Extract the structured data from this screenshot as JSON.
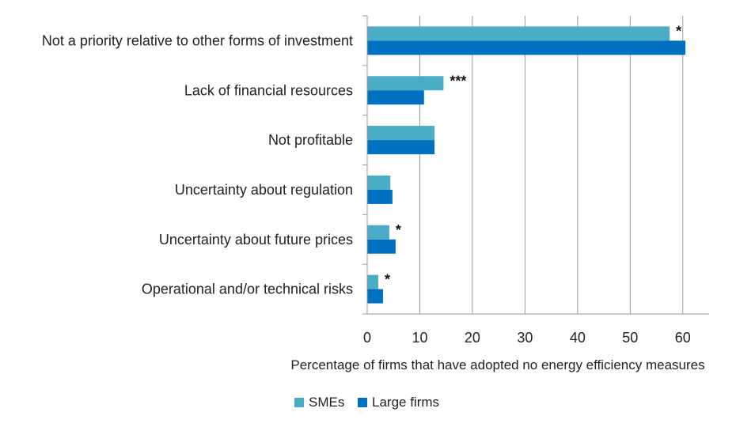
{
  "chart_data": {
    "type": "bar",
    "orientation": "horizontal",
    "categories": [
      "Not a priority relative to other forms of investment",
      "Lack of financial resources",
      "Not profitable",
      "Uncertainty about regulation",
      "Uncertainty about future prices",
      "Operational and/or technical risks"
    ],
    "series": [
      {
        "name": "SMEs",
        "color": "#4bacc6",
        "values": [
          57.5,
          14.5,
          12.8,
          4.4,
          4.2,
          2.1
        ]
      },
      {
        "name": "Large firms",
        "color": "#0070c0",
        "values": [
          60.5,
          10.8,
          12.8,
          4.8,
          5.4,
          3.0
        ]
      }
    ],
    "significance": [
      "*",
      "***",
      "",
      "",
      "*",
      "*"
    ],
    "xlabel": "Percentage of firms that have adopted no energy efficiency measures",
    "ylabel": "",
    "xlim": [
      0,
      65
    ],
    "xticks": [
      0,
      10,
      20,
      30,
      40,
      50,
      60
    ],
    "grid": true,
    "legend_position": "bottom"
  }
}
